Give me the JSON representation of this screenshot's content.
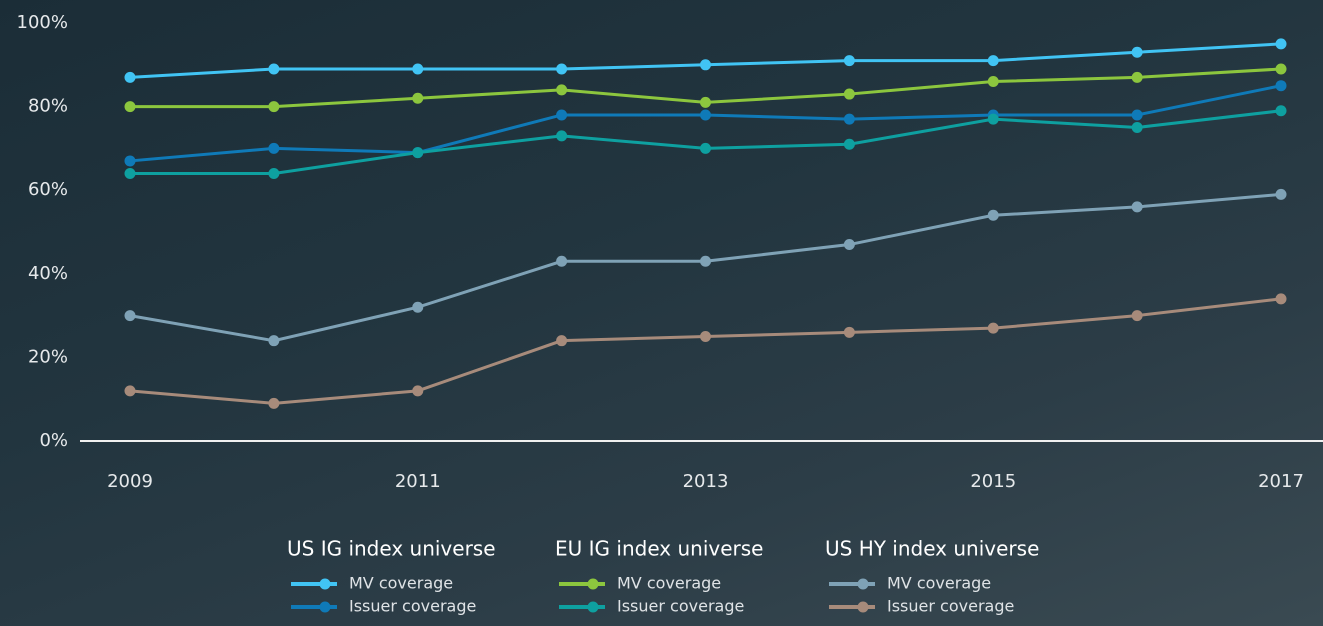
{
  "chart_data": {
    "type": "line",
    "x": [
      2009,
      2010,
      2011,
      2012,
      2013,
      2014,
      2015,
      2016,
      2017
    ],
    "xlim": [
      2009,
      2017
    ],
    "xticks": [
      2009,
      2011,
      2013,
      2015,
      2017
    ],
    "ylim": [
      0,
      100
    ],
    "yticks": [
      {
        "value": 0,
        "label": "0%"
      },
      {
        "value": 20,
        "label": "20%"
      },
      {
        "value": 40,
        "label": "40%"
      },
      {
        "value": 60,
        "label": "60%"
      },
      {
        "value": 80,
        "label": "80%"
      },
      {
        "value": 100,
        "label": "100%"
      }
    ],
    "legend_groups": [
      "US IG index universe",
      "EU IG index universe",
      "US HY index universe"
    ],
    "series": [
      {
        "name": "MV coverage",
        "color": "#41c4f4",
        "values": [
          87,
          89,
          89,
          89,
          90,
          91,
          91,
          93,
          95
        ]
      },
      {
        "name": "Issuer coverage",
        "color": "#0f7ab8",
        "values": [
          67,
          70,
          69,
          78,
          78,
          77,
          78,
          78,
          85
        ]
      },
      {
        "name": "MV coverage",
        "color": "#8cc63e",
        "values": [
          80,
          80,
          82,
          84,
          81,
          83,
          86,
          87,
          89
        ]
      },
      {
        "name": "Issuer coverage",
        "color": "#0ea0a0",
        "values": [
          64,
          64,
          69,
          73,
          70,
          71,
          77,
          75,
          79
        ]
      },
      {
        "name": "MV coverage",
        "color": "#7fa2b6",
        "values": [
          30,
          24,
          32,
          43,
          43,
          47,
          54,
          56,
          59
        ]
      },
      {
        "name": "Issuer coverage",
        "color": "#a78b7b",
        "values": [
          12,
          9,
          12,
          24,
          25,
          26,
          27,
          30,
          34
        ]
      }
    ]
  }
}
